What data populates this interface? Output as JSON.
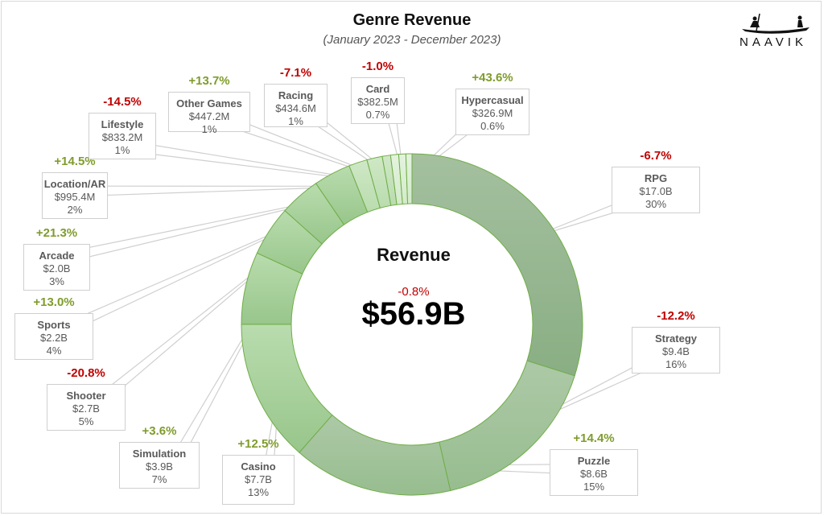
{
  "chart_data": {
    "type": "pie",
    "subtype": "donut",
    "title": "Genre Revenue",
    "subtitle": "(January 2023 - December 2023)",
    "center": {
      "label": "Revenue",
      "total": "$56.9B",
      "change": "-0.8%",
      "change_sign": "negative"
    },
    "unit": "USD",
    "slices": [
      {
        "name": "RPG",
        "value_label": "$17.0B",
        "value": 17.0,
        "share": "30%",
        "change": "-6.7%"
      },
      {
        "name": "Strategy",
        "value_label": "$9.4B",
        "value": 9.4,
        "share": "16%",
        "change": "-12.2%"
      },
      {
        "name": "Puzzle",
        "value_label": "$8.6B",
        "value": 8.6,
        "share": "15%",
        "change": "+14.4%"
      },
      {
        "name": "Casino",
        "value_label": "$7.7B",
        "value": 7.7,
        "share": "13%",
        "change": "+12.5%"
      },
      {
        "name": "Simulation",
        "value_label": "$3.9B",
        "value": 3.9,
        "share": "7%",
        "change": "+3.6%"
      },
      {
        "name": "Shooter",
        "value_label": "$2.7B",
        "value": 2.7,
        "share": "5%",
        "change": "-20.8%"
      },
      {
        "name": "Sports",
        "value_label": "$2.2B",
        "value": 2.2,
        "share": "4%",
        "change": "+13.0%"
      },
      {
        "name": "Arcade",
        "value_label": "$2.0B",
        "value": 2.0,
        "share": "3%",
        "change": "+21.3%"
      },
      {
        "name": "Location/AR",
        "value_label": "$995.4M",
        "value": 0.9954,
        "share": "2%",
        "change": "+14.5%"
      },
      {
        "name": "Lifestyle",
        "value_label": "$833.2M",
        "value": 0.8332,
        "share": "1%",
        "change": "-14.5%"
      },
      {
        "name": "Other Games",
        "value_label": "$447.2M",
        "value": 0.4472,
        "share": "1%",
        "change": "+13.7%"
      },
      {
        "name": "Racing",
        "value_label": "$434.6M",
        "value": 0.4346,
        "share": "1%",
        "change": "-7.1%"
      },
      {
        "name": "Card",
        "value_label": "$382.5M",
        "value": 0.3825,
        "share": "0.7%",
        "change": "-1.0%"
      },
      {
        "name": "Hypercasual",
        "value_label": "$326.9M",
        "value": 0.3269,
        "share": "0.6%",
        "change": "+43.6%"
      }
    ],
    "colors": {
      "positive": "#7f9c2c",
      "negative": "#c00000",
      "slice_outline": "#70ad47"
    },
    "legend": "none (callout labels)"
  },
  "logo": {
    "text": "NAAVIK"
  }
}
